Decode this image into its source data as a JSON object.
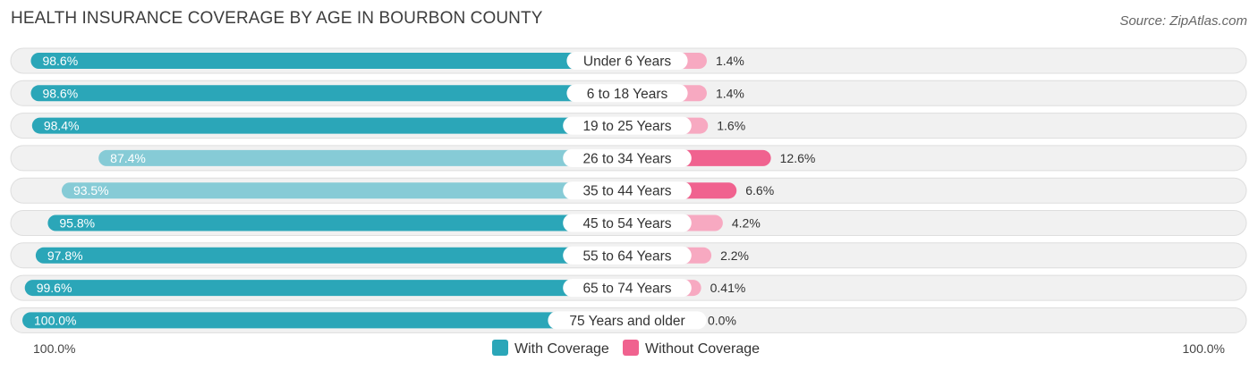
{
  "title": "HEALTH INSURANCE COVERAGE BY AGE IN BOURBON COUNTY",
  "source": "Source: ZipAtlas.com",
  "colors": {
    "with_strong": "#2ba6b8",
    "with_light": "#86cbd6",
    "without_strong": "#f0628f",
    "without_light": "#f7a9c1",
    "row_bg": "#f1f1f1",
    "row_border": "#dedede"
  },
  "chart_data": {
    "type": "bar",
    "orientation": "horizontal-diverging",
    "title": "HEALTH INSURANCE COVERAGE BY AGE IN BOURBON COUNTY",
    "categories": [
      "Under 6 Years",
      "6 to 18 Years",
      "19 to 25 Years",
      "26 to 34 Years",
      "35 to 44 Years",
      "45 to 54 Years",
      "55 to 64 Years",
      "65 to 74 Years",
      "75 Years and older"
    ],
    "series": [
      {
        "name": "With Coverage",
        "values": [
          98.6,
          98.6,
          98.4,
          87.4,
          93.5,
          95.8,
          97.8,
          99.6,
          100.0
        ],
        "labels": [
          "98.6%",
          "98.6%",
          "98.4%",
          "87.4%",
          "93.5%",
          "95.8%",
          "97.8%",
          "99.6%",
          "100.0%"
        ]
      },
      {
        "name": "Without Coverage",
        "values": [
          1.4,
          1.4,
          1.6,
          12.6,
          6.6,
          4.2,
          2.2,
          0.41,
          0.0
        ],
        "labels": [
          "1.4%",
          "1.4%",
          "1.6%",
          "12.6%",
          "6.6%",
          "4.2%",
          "2.2%",
          "0.41%",
          "0.0%"
        ]
      }
    ],
    "axis": {
      "left_label": "100.0%",
      "right_label": "100.0%",
      "range": [
        0,
        100
      ]
    },
    "legend": {
      "position": "bottom-center",
      "items": [
        "With Coverage",
        "Without Coverage"
      ]
    }
  }
}
